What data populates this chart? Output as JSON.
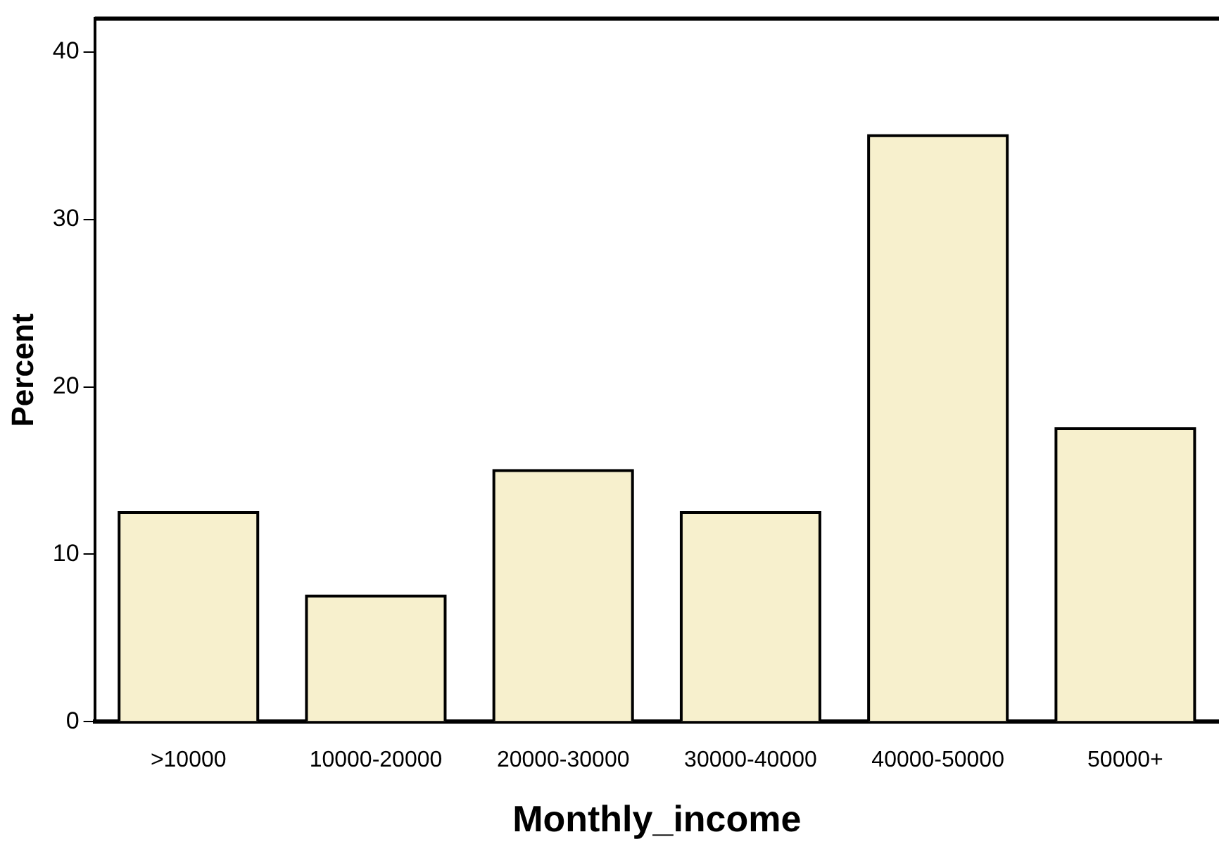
{
  "chart_data": {
    "type": "bar",
    "xlabel": "Monthly_income",
    "ylabel": "Percent",
    "categories": [
      ">10000",
      "10000-20000",
      "20000-30000",
      "30000-40000",
      "40000-50000",
      "50000+"
    ],
    "values": [
      12.5,
      7.5,
      15,
      12.5,
      35,
      17.5
    ],
    "color": "#f7f0cd",
    "ylim": [
      0,
      42
    ],
    "yticks": [
      0,
      10,
      20,
      30,
      40
    ],
    "grid": false,
    "legend": false
  }
}
